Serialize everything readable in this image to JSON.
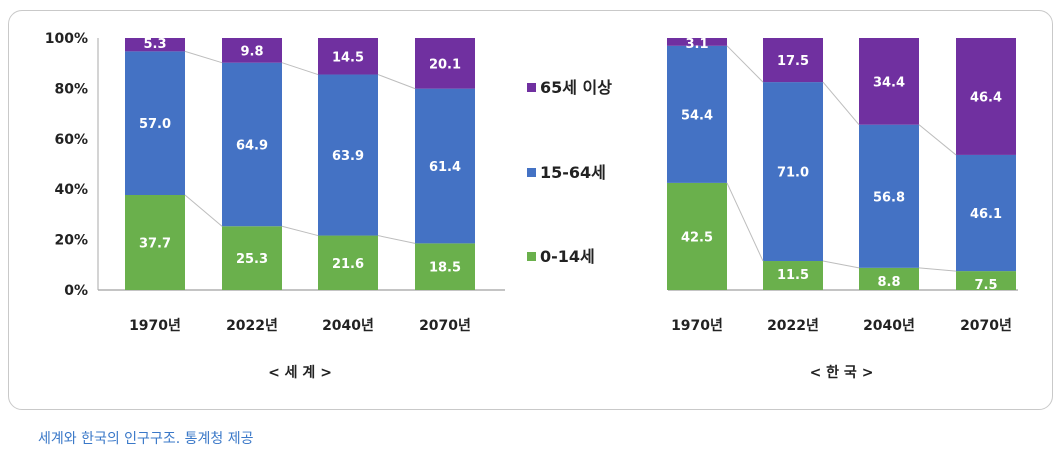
{
  "chart_data": {
    "type": "bar",
    "stacked": true,
    "percent_axis": [
      "0%",
      "20%",
      "40%",
      "60%",
      "80%",
      "100%"
    ],
    "ylim": [
      0,
      100
    ],
    "colors": {
      "0-14세": "#6ab04c",
      "15-64세": "#4472c4",
      "65세 이상": "#7030a0"
    },
    "legend": [
      "65세 이상",
      "15-64세",
      "0-14세"
    ],
    "panels": [
      {
        "subtitle": "< 세 계 >",
        "categories": [
          "1970년",
          "2022년",
          "2040년",
          "2070년"
        ],
        "series": [
          {
            "name": "0-14세",
            "values": [
              37.7,
              25.3,
              21.6,
              18.5
            ]
          },
          {
            "name": "15-64세",
            "values": [
              57.0,
              64.9,
              63.9,
              61.4
            ]
          },
          {
            "name": "65세 이상",
            "values": [
              5.3,
              9.8,
              14.5,
              20.1
            ]
          }
        ]
      },
      {
        "subtitle": "< 한 국 >",
        "categories": [
          "1970년",
          "2022년",
          "2040년",
          "2070년"
        ],
        "series": [
          {
            "name": "0-14세",
            "values": [
              42.5,
              11.5,
              8.8,
              7.5
            ]
          },
          {
            "name": "15-64세",
            "values": [
              54.4,
              71.0,
              56.8,
              46.1
            ]
          },
          {
            "name": "65세 이상",
            "values": [
              3.1,
              17.5,
              34.4,
              46.4
            ]
          }
        ]
      }
    ]
  },
  "caption": "세계와 한국의 인구구조. 통계청 제공"
}
